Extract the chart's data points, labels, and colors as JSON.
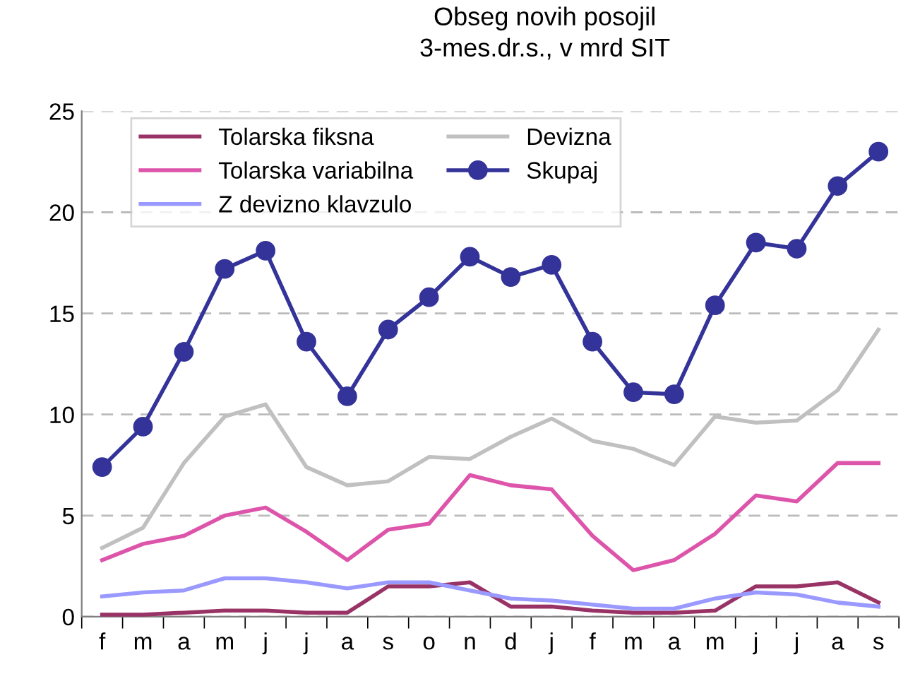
{
  "chart_data": {
    "type": "line",
    "title": "Obseg novih posojil\n3-mes.dr.s., v mrd SIT",
    "categories": [
      "f",
      "m",
      "a",
      "m",
      "j",
      "j",
      "a",
      "s",
      "o",
      "n",
      "d",
      "j",
      "f",
      "m",
      "a",
      "m",
      "j",
      "j",
      "a",
      "s"
    ],
    "series": [
      {
        "name": "Tolarska fiksna",
        "color": "#993366",
        "marker": "none",
        "values": [
          0.1,
          0.1,
          0.2,
          0.3,
          0.3,
          0.2,
          0.2,
          1.5,
          1.5,
          1.7,
          0.5,
          0.5,
          0.3,
          0.2,
          0.2,
          0.3,
          1.5,
          1.5,
          1.7,
          0.7
        ]
      },
      {
        "name": "Tolarska variabilna",
        "color": "#dd55aa",
        "marker": "none",
        "values": [
          2.8,
          3.6,
          4.0,
          5.0,
          5.4,
          4.2,
          2.8,
          4.3,
          4.6,
          7.0,
          6.5,
          6.3,
          4.0,
          2.3,
          2.8,
          4.1,
          6.0,
          5.7,
          7.6,
          7.6
        ]
      },
      {
        "name": "Z devizno klavzulo",
        "color": "#9999ff",
        "marker": "none",
        "values": [
          1.0,
          1.2,
          1.3,
          1.9,
          1.9,
          1.7,
          1.4,
          1.7,
          1.7,
          1.3,
          0.9,
          0.8,
          0.6,
          0.4,
          0.4,
          0.9,
          1.2,
          1.1,
          0.7,
          0.5
        ]
      },
      {
        "name": "Devizna",
        "color": "#c0c0c0",
        "marker": "none",
        "values": [
          3.4,
          4.4,
          7.6,
          9.9,
          10.5,
          7.4,
          6.5,
          6.7,
          7.9,
          7.8,
          8.9,
          9.8,
          8.7,
          8.3,
          7.5,
          9.9,
          9.6,
          9.7,
          11.2,
          14.2
        ]
      },
      {
        "name": "Skupaj",
        "color": "#333399",
        "marker": "circle",
        "values": [
          7.4,
          9.4,
          13.1,
          17.2,
          18.1,
          13.6,
          10.9,
          14.2,
          15.8,
          17.8,
          16.8,
          17.4,
          13.6,
          11.1,
          11.0,
          15.4,
          18.5,
          18.2,
          21.3,
          23.0
        ]
      }
    ],
    "ylim": [
      0,
      25
    ],
    "yticks": [
      0,
      5,
      10,
      15,
      20,
      25
    ],
    "grid": "y",
    "legend": "top",
    "line_style": "solid"
  }
}
